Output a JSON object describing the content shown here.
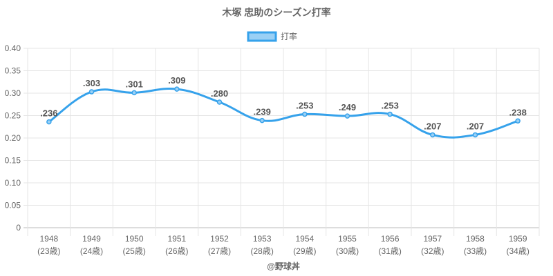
{
  "chart_data": {
    "type": "line",
    "title": "木塚 忠助のシーズン打率",
    "legend": {
      "label": "打率",
      "placement": "top-center"
    },
    "categories": [
      "1948",
      "1949",
      "1950",
      "1951",
      "1952",
      "1953",
      "1954",
      "1955",
      "1956",
      "1957",
      "1958",
      "1959"
    ],
    "sublabels": [
      "(23歳)",
      "(24歳)",
      "(25歳)",
      "(26歳)",
      "(27歳)",
      "(28歳)",
      "(29歳)",
      "(30歳)",
      "(31歳)",
      "(32歳)",
      "(33歳)",
      "(34歳)"
    ],
    "series": [
      {
        "name": "打率",
        "values": [
          0.236,
          0.303,
          0.301,
          0.309,
          0.28,
          0.239,
          0.253,
          0.249,
          0.253,
          0.207,
          0.207,
          0.238
        ],
        "labels": [
          ".236",
          ".303",
          ".301",
          ".309",
          ".280",
          ".239",
          ".253",
          ".249",
          ".253",
          ".207",
          ".207",
          ".238"
        ]
      }
    ],
    "ylim": [
      0,
      0.4
    ],
    "yticks": [
      "0",
      "0.05",
      "0.10",
      "0.15",
      "0.20",
      "0.25",
      "0.30",
      "0.35",
      "0.40"
    ],
    "grid": true,
    "xlabel": "",
    "ylabel": "",
    "color": "#36a2eb",
    "fill_color": "#9ad0f5"
  },
  "credit": "@野球丼"
}
